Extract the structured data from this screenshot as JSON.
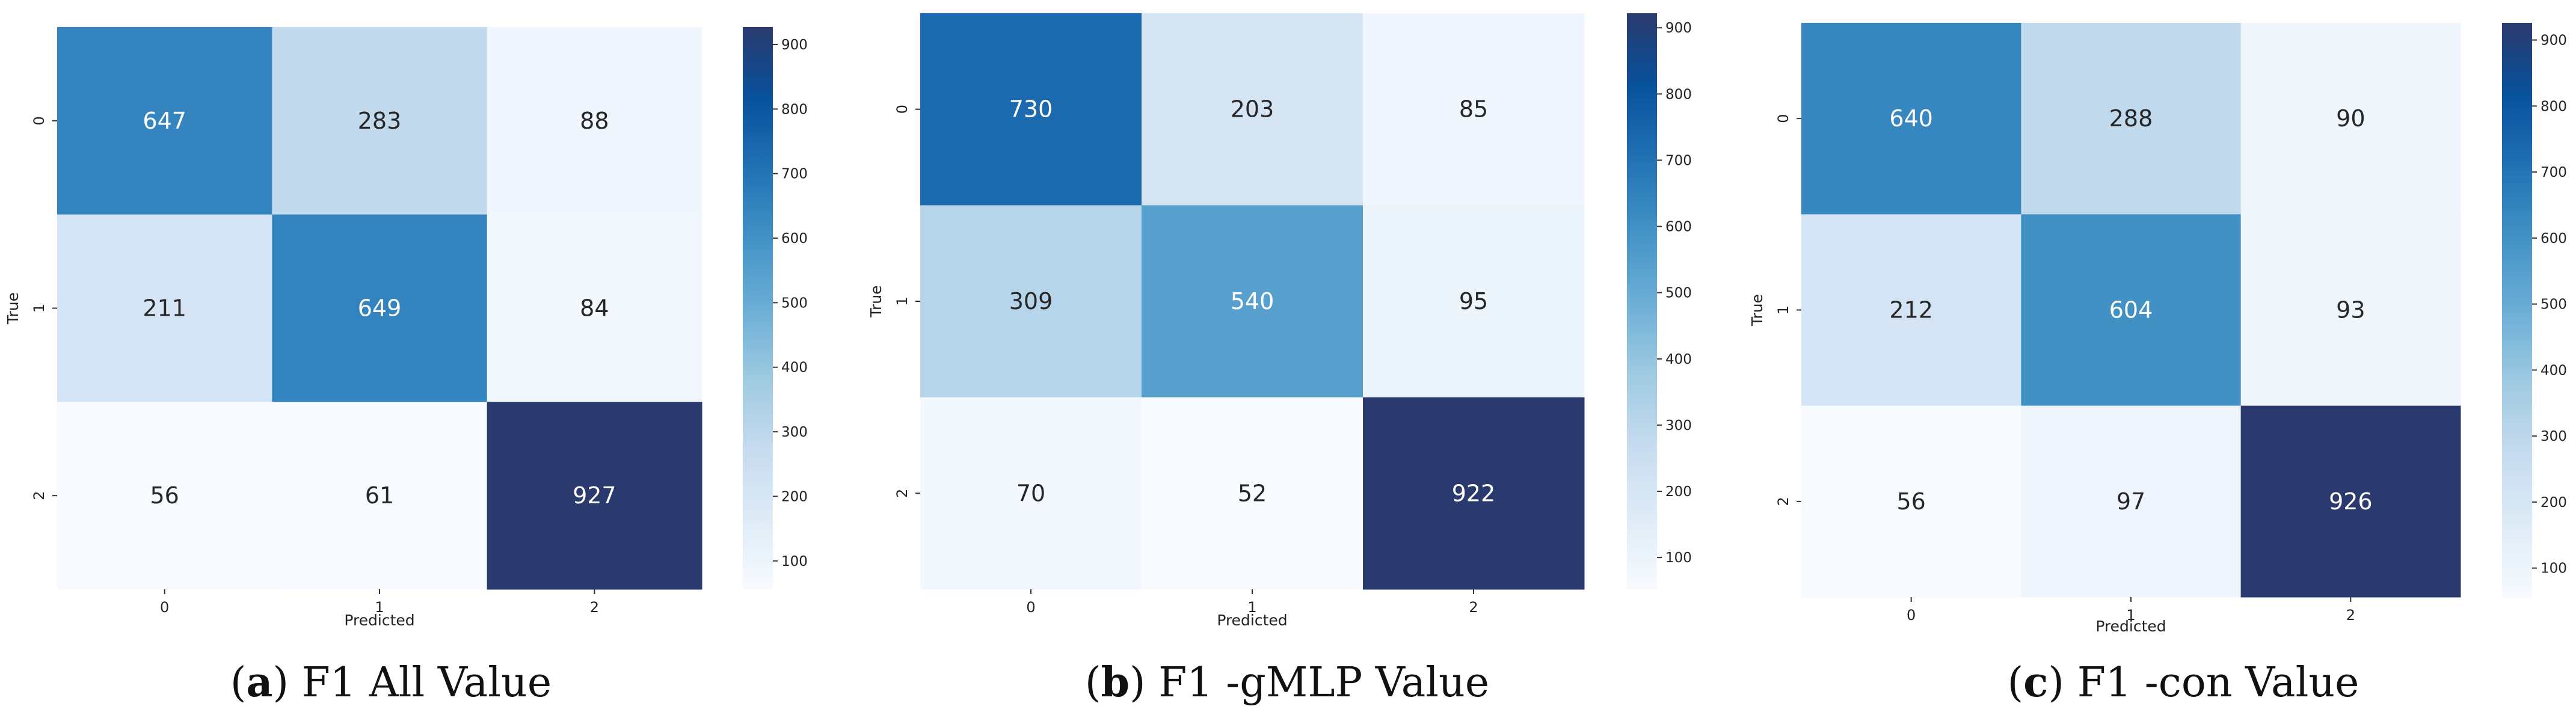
{
  "colormap": {
    "name": "Blues",
    "stops": [
      "#f7fbff",
      "#deebf7",
      "#c6dbef",
      "#9ecae1",
      "#6baed6",
      "#4292c6",
      "#2171b5",
      "#08519c",
      "#2a3a6e"
    ],
    "text_light": "#ffffff",
    "text_dark": "#262626"
  },
  "chart_data": [
    {
      "type": "heatmap",
      "title": "",
      "xlabel": "Predicted",
      "ylabel": "True",
      "x_categories": [
        "0",
        "1",
        "2"
      ],
      "y_categories": [
        "0",
        "1",
        "2"
      ],
      "values": [
        [
          647,
          283,
          88
        ],
        [
          211,
          649,
          84
        ],
        [
          56,
          61,
          927
        ]
      ],
      "colorbar": {
        "vmin": 56,
        "vmax": 927,
        "ticks": [
          100,
          200,
          300,
          400,
          500,
          600,
          700,
          800,
          900
        ]
      },
      "caption": {
        "letter": "a",
        "text": "F1 All Value"
      }
    },
    {
      "type": "heatmap",
      "title": "",
      "xlabel": "Predicted",
      "ylabel": "True",
      "x_categories": [
        "0",
        "1",
        "2"
      ],
      "y_categories": [
        "0",
        "1",
        "2"
      ],
      "values": [
        [
          730,
          203,
          85
        ],
        [
          309,
          540,
          95
        ],
        [
          70,
          52,
          922
        ]
      ],
      "colorbar": {
        "vmin": 52,
        "vmax": 922,
        "ticks": [
          100,
          200,
          300,
          400,
          500,
          600,
          700,
          800,
          900
        ]
      },
      "caption": {
        "letter": "b",
        "text": "F1 -gMLP Value"
      }
    },
    {
      "type": "heatmap",
      "title": "",
      "xlabel": "Predicted",
      "ylabel": "True",
      "x_categories": [
        "0",
        "1",
        "2"
      ],
      "y_categories": [
        "0",
        "1",
        "2"
      ],
      "values": [
        [
          640,
          288,
          90
        ],
        [
          212,
          604,
          93
        ],
        [
          56,
          97,
          926
        ]
      ],
      "colorbar": {
        "vmin": 56,
        "vmax": 926,
        "ticks": [
          100,
          200,
          300,
          400,
          500,
          600,
          700,
          800,
          900
        ]
      },
      "caption": {
        "letter": "c",
        "text": "F1 -con Value"
      }
    }
  ]
}
